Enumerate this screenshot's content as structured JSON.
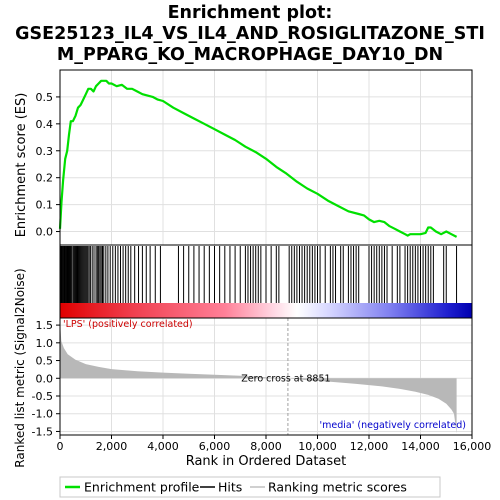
{
  "chart_data": {
    "type": "line",
    "title_lines": [
      "Enrichment plot:",
      "GSE25123_IL4_VS_IL4_AND_ROSIGLITAZONE_STI",
      "M_PPARG_KO_MACROPHAGE_DAY10_DN"
    ],
    "xlabel": "Rank in Ordered Dataset",
    "xlim": [
      0,
      16000
    ],
    "x_ticks": [
      0,
      2000,
      4000,
      6000,
      8000,
      10000,
      12000,
      14000,
      16000
    ],
    "x_tick_labels": [
      "0",
      "2,000",
      "4,000",
      "6,000",
      "8,000",
      "10,000",
      "12,000",
      "14,000",
      "16,000"
    ],
    "dataset_size": 15400,
    "enrichment_panel": {
      "ylabel": "Enrichment score (ES)",
      "ylim": [
        -0.05,
        0.6
      ],
      "y_ticks": [
        0.0,
        0.1,
        0.2,
        0.3,
        0.4,
        0.5
      ],
      "y_tick_labels": [
        "0.0",
        "0.1",
        "0.2",
        "0.3",
        "0.4",
        "0.5"
      ],
      "grid": true,
      "series": [
        {
          "name": "Enrichment profile",
          "color": "#00e000",
          "x": [
            0,
            60,
            120,
            200,
            280,
            350,
            420,
            500,
            600,
            700,
            800,
            900,
            1000,
            1100,
            1200,
            1300,
            1400,
            1500,
            1600,
            1700,
            1800,
            1900,
            2000,
            2200,
            2400,
            2600,
            2800,
            3000,
            3200,
            3400,
            3600,
            3800,
            4000,
            4400,
            4800,
            5200,
            5600,
            6000,
            6400,
            6800,
            7200,
            7600,
            8000,
            8400,
            8800,
            9200,
            9600,
            10000,
            10400,
            10800,
            11200,
            11600,
            11800,
            12000,
            12200,
            12400,
            12600,
            12800,
            13000,
            13200,
            13400,
            13500,
            13600,
            13800,
            14000,
            14200,
            14300,
            14400,
            14600,
            14800,
            15000,
            15200,
            15400
          ],
          "y": [
            0.01,
            0.11,
            0.19,
            0.27,
            0.3,
            0.36,
            0.41,
            0.41,
            0.43,
            0.46,
            0.47,
            0.49,
            0.51,
            0.53,
            0.53,
            0.52,
            0.54,
            0.55,
            0.56,
            0.56,
            0.56,
            0.55,
            0.55,
            0.54,
            0.545,
            0.53,
            0.53,
            0.52,
            0.51,
            0.505,
            0.5,
            0.49,
            0.485,
            0.46,
            0.44,
            0.42,
            0.4,
            0.38,
            0.36,
            0.34,
            0.315,
            0.295,
            0.27,
            0.24,
            0.215,
            0.185,
            0.16,
            0.14,
            0.115,
            0.095,
            0.075,
            0.065,
            0.06,
            0.045,
            0.035,
            0.04,
            0.035,
            0.02,
            0.01,
            0.0,
            -0.01,
            -0.015,
            -0.01,
            -0.01,
            -0.01,
            -0.005,
            0.015,
            0.015,
            0.0,
            -0.01,
            0.0,
            -0.01,
            -0.02
          ]
        }
      ]
    },
    "hits_panel": {
      "series_name": "Hits",
      "hit_ranks": [
        10,
        40,
        70,
        100,
        130,
        160,
        190,
        220,
        250,
        280,
        310,
        340,
        370,
        400,
        430,
        470,
        520,
        560,
        600,
        640,
        680,
        720,
        760,
        800,
        840,
        880,
        920,
        960,
        1000,
        1040,
        1080,
        1130,
        1180,
        1250,
        1320,
        1400,
        1450,
        1500,
        1550,
        1600,
        1650,
        1700,
        1780,
        1860,
        1950,
        2050,
        2150,
        2250,
        2350,
        2450,
        2550,
        2650,
        2750,
        2900,
        3050,
        3200,
        3350,
        3500,
        3700,
        3900,
        4600,
        4800,
        5000,
        5200,
        5400,
        5600,
        5800,
        6000,
        6200,
        6400,
        6600,
        6800,
        7000,
        7200,
        7300,
        7400,
        7500,
        7600,
        7700,
        7800,
        8000,
        8200,
        8400,
        8500,
        8900,
        9000,
        9100,
        9200,
        9300,
        9400,
        9500,
        9600,
        9700,
        9800,
        9900,
        10000,
        10100,
        10300,
        10500,
        10600,
        10700,
        10900,
        11000,
        11200,
        11300,
        11400,
        11500,
        11600,
        12000,
        12100,
        12200,
        12300,
        12400,
        12500,
        12600,
        12700,
        12900,
        13100,
        13200,
        13400,
        13500,
        13600,
        13700,
        13800,
        13900,
        14000,
        14100,
        14200,
        14300,
        14400,
        14500,
        14900,
        15000,
        15400
      ]
    },
    "ranking_panel": {
      "ylabel": "Ranked list metric (Signal2Noise)",
      "ylim": [
        -1.6,
        1.7
      ],
      "y_ticks": [
        -1.5,
        -1.0,
        -0.5,
        0.0,
        0.5,
        1.0,
        1.5
      ],
      "y_tick_labels": [
        "-1.5",
        "-1.0",
        "-0.5",
        "0.0",
        "0.5",
        "1.0",
        "1.5"
      ],
      "grid": true,
      "series_name": "Ranking metric scores",
      "x": [
        0,
        50,
        150,
        300,
        600,
        1000,
        1500,
        2000,
        3000,
        4000,
        5000,
        6000,
        7000,
        8000,
        8851,
        9500,
        10500,
        11500,
        12500,
        13200,
        13800,
        14300,
        14700,
        15000,
        15200,
        15300,
        15400
      ],
      "y": [
        1.6,
        1.05,
        0.85,
        0.68,
        0.52,
        0.4,
        0.32,
        0.26,
        0.2,
        0.16,
        0.13,
        0.1,
        0.07,
        0.03,
        0.0,
        -0.05,
        -0.1,
        -0.16,
        -0.23,
        -0.3,
        -0.38,
        -0.47,
        -0.58,
        -0.72,
        -0.88,
        -1.0,
        -1.55
      ],
      "zero_cross_rank": 8851,
      "zero_cross_label": "Zero cross at 8851",
      "pos_label": "'LPS' (positively correlated)",
      "neg_label": "'media' (negatively correlated)"
    },
    "legend": {
      "placement": "bottom",
      "items": [
        {
          "label": "Enrichment profile",
          "color": "#00e000"
        },
        {
          "label": "Hits",
          "color": "#000000"
        },
        {
          "label": "Ranking metric scores",
          "color": "#c0c0c0"
        }
      ]
    },
    "colors": {
      "profile": "#00e000",
      "hits": "#000000",
      "metric_fill": "#b8b8b8",
      "pos_label": "#cc0000",
      "neg_label": "#0000cc",
      "zero_line": "#a0a0a0"
    }
  }
}
